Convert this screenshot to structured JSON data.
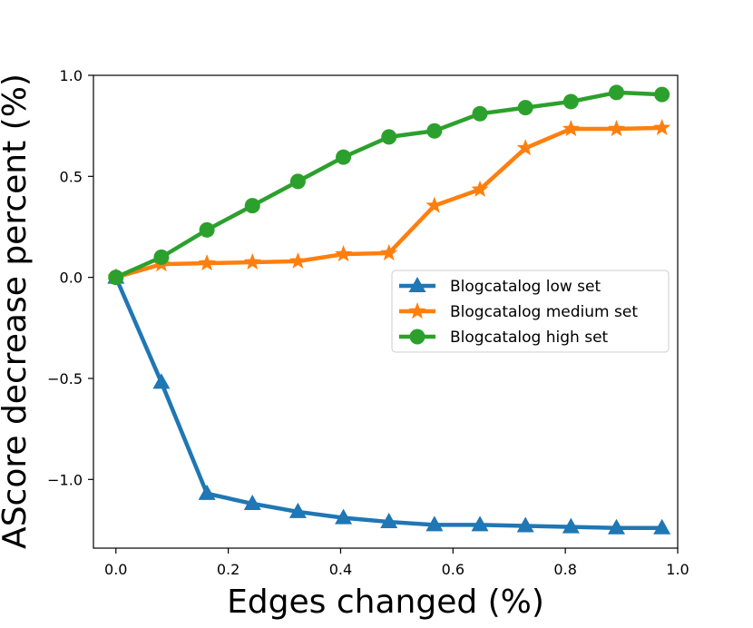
{
  "chart_data": {
    "type": "line",
    "title": "",
    "xlabel": "Edges changed (%)",
    "ylabel": "AScore decrease percent (%)",
    "xlim": [
      -0.04,
      1.0
    ],
    "ylim": [
      -1.34,
      1.0
    ],
    "xticks": [
      0.0,
      0.2,
      0.4,
      0.6,
      0.8,
      1.0
    ],
    "xtick_labels": [
      "0.0",
      "0.2",
      "0.4",
      "0.6",
      "0.8",
      "1.0"
    ],
    "yticks": [
      1.0,
      0.5,
      0.0,
      -0.5,
      -1.0
    ],
    "ytick_labels": [
      "1.0",
      "0.5",
      "0.0",
      "−0.5",
      "−1.0"
    ],
    "grid": false,
    "legend_position": "center-right",
    "x": [
      0.0,
      0.081,
      0.162,
      0.243,
      0.324,
      0.405,
      0.486,
      0.567,
      0.648,
      0.729,
      0.81,
      0.891,
      0.972
    ],
    "series": [
      {
        "name": "Blogcatalog low set",
        "color": "#1f77b4",
        "marker": "triangle",
        "values": [
          0.0,
          -0.52,
          -1.07,
          -1.12,
          -1.16,
          -1.19,
          -1.21,
          -1.225,
          -1.225,
          -1.23,
          -1.235,
          -1.24,
          -1.24
        ]
      },
      {
        "name": "Blogcatalog medium set",
        "color": "#ff7f0e",
        "marker": "star",
        "values": [
          0.0,
          0.065,
          0.07,
          0.075,
          0.08,
          0.115,
          0.12,
          0.355,
          0.435,
          0.64,
          0.735,
          0.735,
          0.74
        ]
      },
      {
        "name": "Blogcatalog high set",
        "color": "#2ca02c",
        "marker": "circle",
        "values": [
          0.0,
          0.1,
          0.235,
          0.355,
          0.475,
          0.595,
          0.695,
          0.725,
          0.81,
          0.84,
          0.87,
          0.915,
          0.905
        ]
      }
    ]
  }
}
